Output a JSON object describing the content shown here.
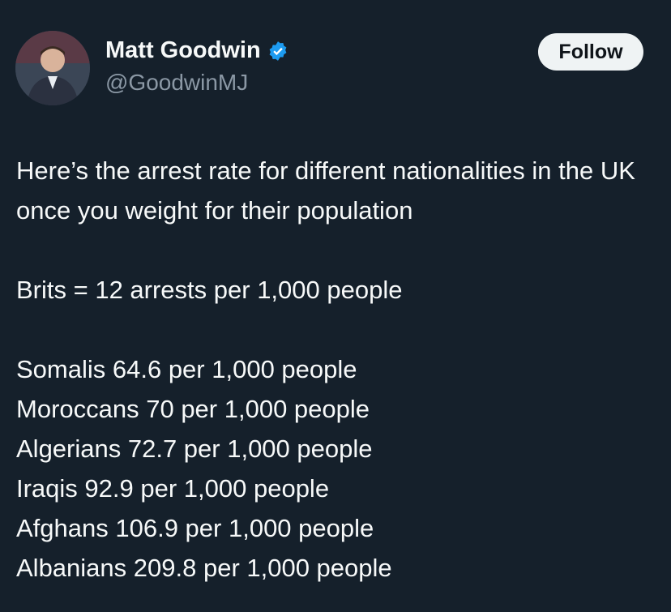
{
  "author": {
    "name": "Matt Goodwin",
    "handle": "@GoodwinMJ"
  },
  "follow_button": "Follow",
  "tweet": {
    "paragraphs": [
      [
        "Here’s the arrest rate for different nationalities in the UK once you weight for their population"
      ],
      [
        "Brits = 12 arrests per 1,000 people"
      ],
      [
        "Somalis 64.6 per 1,000 people",
        "Moroccans 70 per 1,000 people",
        "Algerians 72.7 per 1,000 people",
        "Iraqis 92.9 per 1,000 people",
        "Afghans 106.9 per 1,000 people",
        "Albanians 209.8 per 1,000 people"
      ]
    ]
  }
}
